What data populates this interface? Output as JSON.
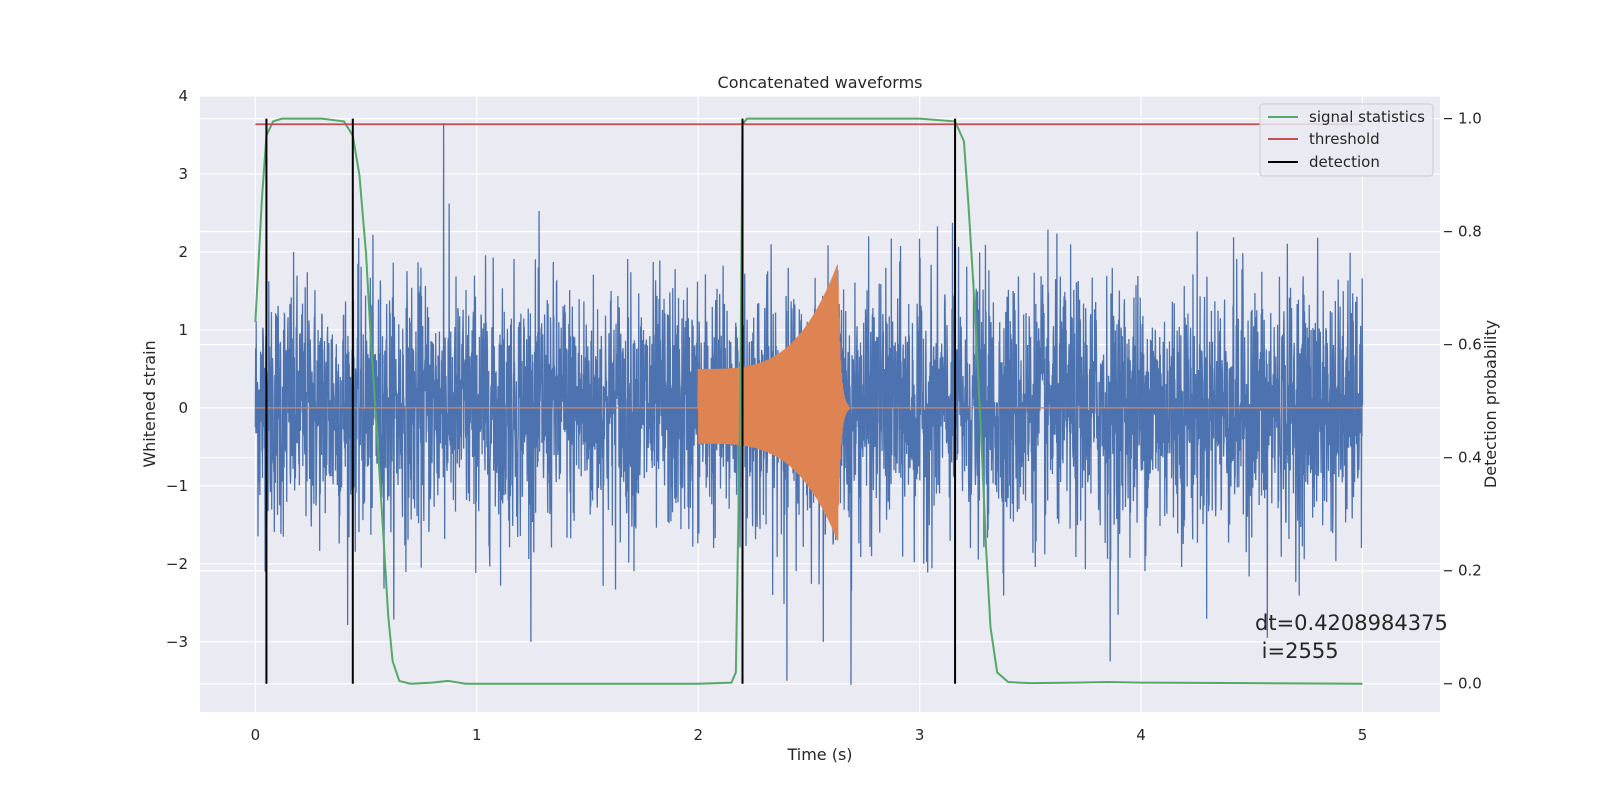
{
  "chart_data": {
    "type": "line",
    "title": "Concatenated waveforms",
    "xlabel": "Time (s)",
    "ylabel": "Whitened strain",
    "ylabel_right": "Detection probability",
    "xlim": [
      -0.25,
      5.35
    ],
    "ylim": [
      -3.9,
      4.0
    ],
    "ylim_right": [
      -0.05,
      1.04
    ],
    "x_ticks": [
      0,
      1,
      2,
      3,
      4,
      5
    ],
    "x_tick_labels": [
      "0",
      "1",
      "2",
      "3",
      "4",
      "5"
    ],
    "y_ticks": [
      4,
      3,
      2,
      1,
      0,
      -1,
      -2,
      -3
    ],
    "y_tick_labels": [
      "4",
      "3",
      "2",
      "1",
      "0",
      "−1",
      "−2",
      "−3"
    ],
    "y_right_ticks": [
      1.0,
      0.8,
      0.6,
      0.4,
      0.2,
      0.0
    ],
    "y_right_tick_labels": [
      "1.0",
      "0.8",
      "0.6",
      "0.4",
      "0.2",
      "0.0"
    ],
    "grid": true,
    "legend_position": "top-right",
    "series": [
      {
        "name": "",
        "kind": "noise",
        "axis": "left",
        "color": "#4c72b0",
        "x_range": [
          0,
          5
        ],
        "typical_amplitude": 1.0,
        "extremes": [
          {
            "x": 0.85,
            "y": 3.65
          },
          {
            "x": 2.4,
            "y": -3.5
          },
          {
            "x": 2.69,
            "y": -3.55
          },
          {
            "x": 3.86,
            "y": -3.25
          },
          {
            "x": 4.57,
            "y": -2.95
          }
        ]
      },
      {
        "name": "",
        "kind": "chirp",
        "axis": "left",
        "color": "#dd8452",
        "x_range": [
          0,
          5
        ],
        "chirp_start": 2.0,
        "chirp_merger": 2.63,
        "amplitude_start": 0.5,
        "amplitude_peak": 1.85,
        "amplitude_min": -1.7
      },
      {
        "name": "signal statistics",
        "axis": "right",
        "color": "#55a868",
        "x": [
          0.0,
          0.03,
          0.05,
          0.08,
          0.12,
          0.2,
          0.3,
          0.4,
          0.44,
          0.47,
          0.5,
          0.52,
          0.55,
          0.58,
          0.6,
          0.62,
          0.65,
          0.7,
          0.8,
          0.87,
          0.95,
          1.2,
          1.6,
          2.0,
          2.15,
          2.17,
          2.19,
          2.2,
          2.22,
          2.3,
          2.6,
          3.0,
          3.16,
          3.2,
          3.22,
          3.25,
          3.28,
          3.3,
          3.32,
          3.35,
          3.4,
          3.5,
          3.7,
          3.85,
          4.0,
          4.5,
          5.0
        ],
        "y": [
          0.64,
          0.86,
          0.97,
          0.995,
          1.0,
          1.0,
          1.0,
          0.995,
          0.97,
          0.9,
          0.76,
          0.62,
          0.44,
          0.25,
          0.12,
          0.04,
          0.005,
          0.0,
          0.002,
          0.005,
          0.0,
          0.0,
          0.0,
          0.0,
          0.002,
          0.02,
          0.5,
          0.99,
          1.0,
          1.0,
          1.0,
          1.0,
          0.995,
          0.96,
          0.85,
          0.66,
          0.42,
          0.24,
          0.1,
          0.02,
          0.003,
          0.001,
          0.002,
          0.003,
          0.002,
          0.001,
          0.0
        ]
      },
      {
        "name": "threshold",
        "axis": "right",
        "color": "#c44e52",
        "x": [
          0,
          5
        ],
        "y": [
          0.99,
          0.99
        ]
      },
      {
        "name": "detection",
        "axis": "right",
        "color": "#000000",
        "type": "vlines",
        "x": [
          0.05,
          0.44,
          2.2,
          3.16
        ],
        "y_range": [
          0.0,
          1.0
        ]
      }
    ],
    "annotation": {
      "line1": "dt=0.4208984375",
      "line2": " i=2555",
      "x": 4.52,
      "y": -3.3
    }
  }
}
